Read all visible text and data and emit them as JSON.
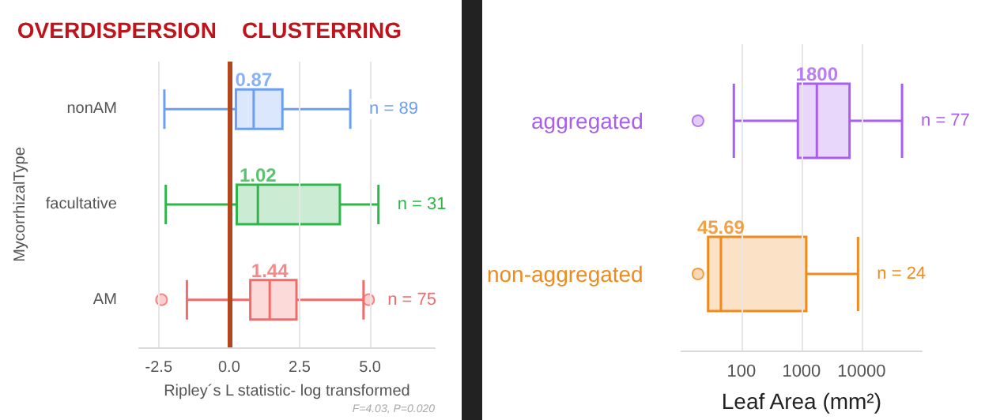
{
  "chart_data": [
    {
      "type": "box",
      "categories": [
        "nonAM",
        "facultative",
        "AM"
      ],
      "colors": [
        "#6b9ff2",
        "#2fb54a",
        "#f26b6b"
      ],
      "boxes": [
        {
          "low": -2.3,
          "q1": 0.24,
          "median": 0.87,
          "q3": 1.89,
          "high": 4.3
        },
        {
          "low": -2.25,
          "q1": 0.27,
          "median": 1.02,
          "q3": 3.93,
          "high": 5.3
        },
        {
          "low": -1.5,
          "q1": 0.75,
          "median": 1.44,
          "q3": 2.39,
          "high": 4.77,
          "outliers": [
            -2.4,
            4.95
          ]
        }
      ],
      "orientation": "horizontal",
      "xlim": [
        -3.2,
        7.3
      ],
      "xticks": [
        {
          "value": -2.5,
          "label": "-2.5"
        },
        {
          "value": 0,
          "label": "0.0"
        },
        {
          "value": 2.5,
          "label": "2.5"
        },
        {
          "value": 5,
          "label": "5.0"
        }
      ],
      "xlabel": "Ripley´s L statistic- log transformed",
      "ylabel": "MycorrhizalType",
      "grid": "x",
      "ref_lines": [
        {
          "axis": "x",
          "value": 0,
          "color": "#b5451b"
        }
      ],
      "annotations": [
        "OVERDISPERSION",
        "CLUSTERRING",
        "F=4.03, P=0.020",
        {
          "text": "0.87",
          "x": 0.87,
          "y": "nonAM"
        },
        {
          "text": "1.02",
          "x": 1.02,
          "y": "facultative"
        },
        {
          "text": "1.44",
          "x": 1.44,
          "y": "AM"
        },
        "n = 89",
        "n = 31",
        "n = 75"
      ]
    },
    {
      "type": "box",
      "categories": [
        "aggregated",
        "non-aggregated"
      ],
      "colors": [
        "#a95ef0",
        "#f08a1c"
      ],
      "boxes": [
        {
          "low": 75,
          "q1": 870,
          "median": 1800,
          "q3": 6300,
          "high": 47000,
          "outliers": [
            19
          ]
        },
        {
          "low": 28,
          "q1": 28,
          "median": 45.69,
          "q3": 1200,
          "high": 8700,
          "outliers": [
            19
          ]
        }
      ],
      "orientation": "horizontal",
      "log": "x",
      "xlim": [
        10,
        100000
      ],
      "xticks": [
        100,
        1000,
        10000
      ],
      "xlabel": "Leaf Area (mm²)",
      "grid": "x",
      "annotations": [
        {
          "text": "1800",
          "x": 1800,
          "y": "aggregated"
        },
        {
          "text": "45.69",
          "x": 45.69,
          "y": "non-aggregated"
        },
        "n = 77",
        "n = 24"
      ]
    }
  ]
}
